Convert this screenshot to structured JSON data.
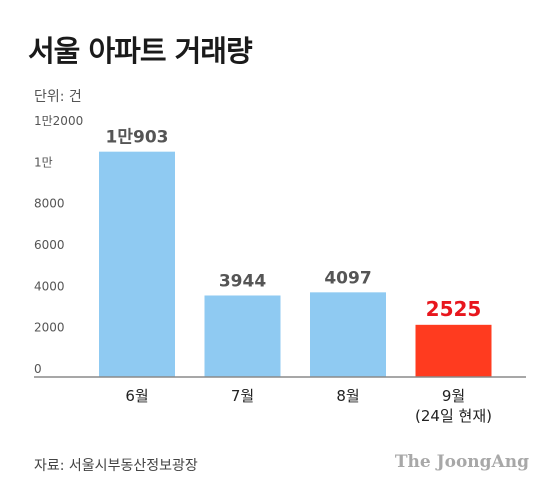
{
  "title": "서울 아파트 거래량",
  "unit_label": "단위: 건",
  "source": "자료: 서울시부동산정보광장",
  "brand": "The JoongAng",
  "colors": {
    "bar": "#8fcaf2",
    "highlight": "#ff3b1f",
    "label": "#555555",
    "highlight_label": "#e8161d"
  },
  "chart_data": {
    "type": "bar",
    "categories": [
      "6월",
      "7월",
      "8월",
      "9월"
    ],
    "category_sublabels": [
      "",
      "",
      "",
      "(24일 현재)"
    ],
    "values": [
      10903,
      3944,
      4097,
      2525
    ],
    "data_labels": [
      "1만903",
      "3944",
      "4097",
      "2525"
    ],
    "highlight_index": 3,
    "yticks": [
      {
        "value": 0,
        "label": "0"
      },
      {
        "value": 2000,
        "label": "2000"
      },
      {
        "value": 4000,
        "label": "4000"
      },
      {
        "value": 6000,
        "label": "6000"
      },
      {
        "value": 8000,
        "label": "8000"
      },
      {
        "value": 10000,
        "label": "1만"
      },
      {
        "value": 12000,
        "label": "1만2000"
      }
    ],
    "ylim": [
      0,
      12000
    ],
    "grid": false
  }
}
